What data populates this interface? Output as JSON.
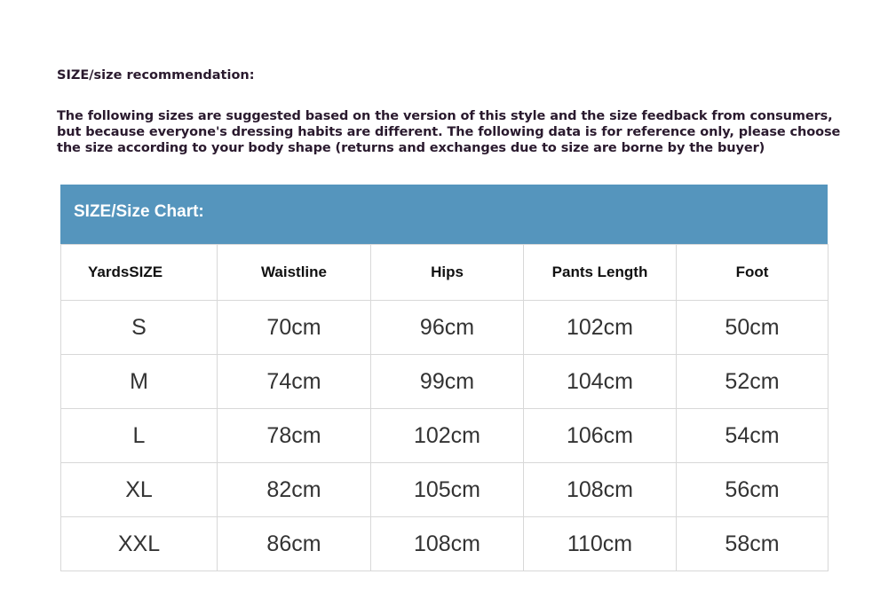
{
  "heading": "SIZE/size recommendation:",
  "note": "The following sizes are suggested based on the version of this style and the size feedback from consumers, but because everyone's dressing habits are different. The following data is for reference only, please choose the size according to your body shape (returns and exchanges due to size are borne by the buyer)",
  "chart": {
    "title": "SIZE/Size Chart:",
    "header_color": "#5595bd",
    "columns": [
      "YardsSIZE",
      "Waistline",
      "Hips",
      "Pants Length",
      "Foot"
    ],
    "rows": [
      [
        "S",
        "70cm",
        "96cm",
        "102cm",
        "50cm"
      ],
      [
        "M",
        "74cm",
        "99cm",
        "104cm",
        "52cm"
      ],
      [
        "L",
        "78cm",
        "102cm",
        "106cm",
        "54cm"
      ],
      [
        "XL",
        "82cm",
        "105cm",
        "108cm",
        "56cm"
      ],
      [
        "XXL",
        "86cm",
        "108cm",
        "110cm",
        "58cm"
      ]
    ]
  }
}
